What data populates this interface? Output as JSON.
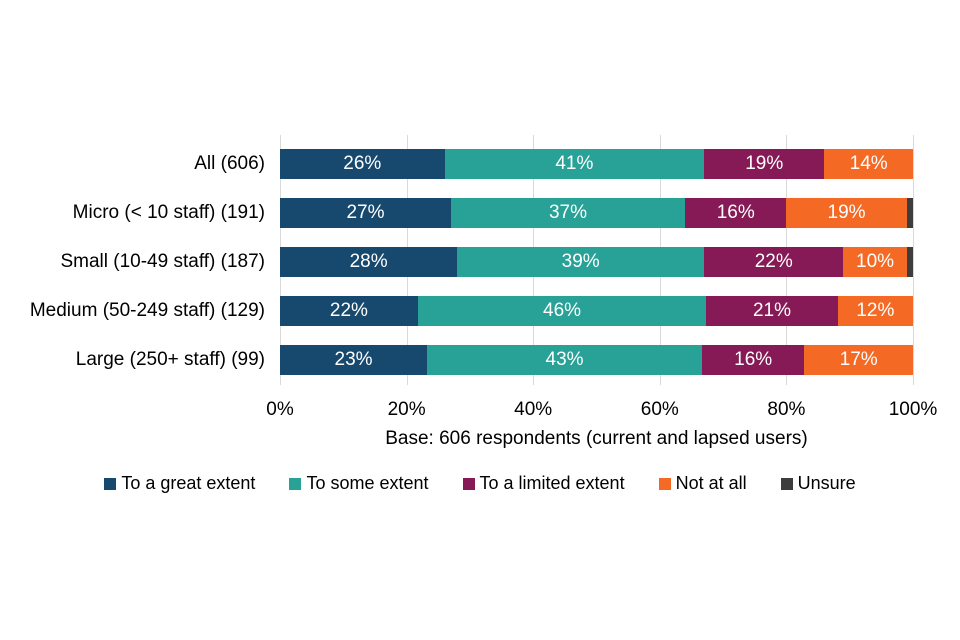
{
  "background": "#ffffff",
  "chart_data": {
    "type": "bar",
    "orientation": "horizontal",
    "stacked": true,
    "title": "",
    "xlabel": "",
    "ylabel": "",
    "categories": [
      "All (606)",
      "Micro (< 10 staff) (191)",
      "Small (10-49 staff) (187)",
      "Medium (50-249 staff) (129)",
      "Large (250+ staff) (99)"
    ],
    "series": [
      {
        "name": "To a great extent",
        "color": "#17496E",
        "values": [
          26,
          27,
          28,
          22,
          23
        ]
      },
      {
        "name": "To some extent",
        "color": "#28A197",
        "values": [
          41,
          37,
          39,
          46,
          43
        ]
      },
      {
        "name": "To a limited extent",
        "color": "#861A56",
        "values": [
          19,
          16,
          22,
          21,
          16
        ]
      },
      {
        "name": "Not at all",
        "color": "#F46A25",
        "values": [
          14,
          19,
          10,
          12,
          17
        ]
      },
      {
        "name": "Unsure",
        "color": "#3D3D3D",
        "values": [
          0,
          1,
          1,
          0,
          0
        ]
      }
    ],
    "value_suffix": "%",
    "label_min_value": 4,
    "xlim": [
      0,
      100
    ],
    "x_ticks": [
      "0%",
      "20%",
      "40%",
      "60%",
      "80%",
      "100%"
    ],
    "grid": true,
    "gridline_color": "#d9d9d9",
    "legend_position": "bottom",
    "note": "Base: 606 respondents (current and lapsed users)"
  }
}
